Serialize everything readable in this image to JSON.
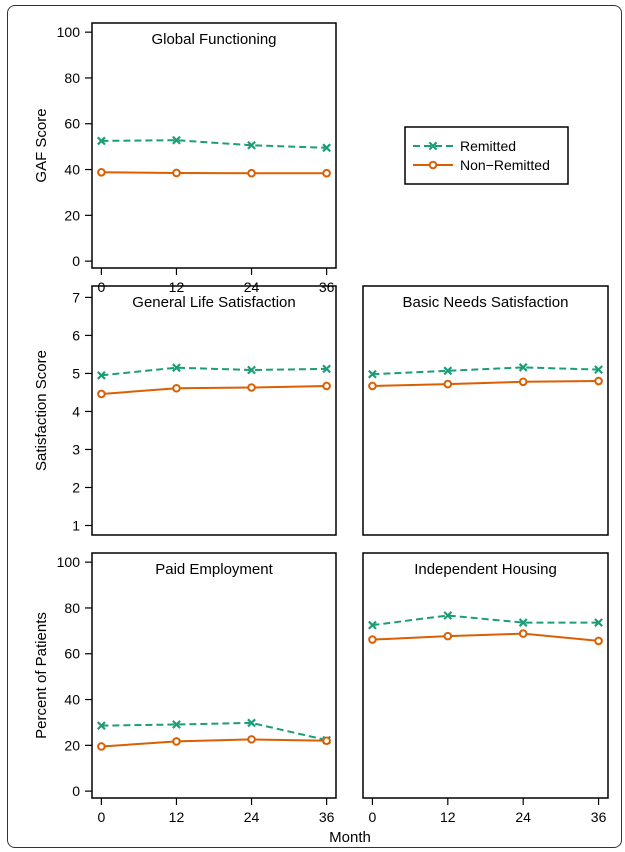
{
  "legend": {
    "position": "top-right",
    "entries": [
      {
        "name": "Remitted",
        "color": "#1b9e77",
        "marker": "x",
        "linestyle": "dashed"
      },
      {
        "name": "Non−Remitted",
        "color": "#d95f02",
        "marker": "o",
        "linestyle": "solid"
      }
    ]
  },
  "xlabel": "Month",
  "chart_data": [
    {
      "type": "line",
      "title": "Global Functioning",
      "ylabel": "GAF Score",
      "x": [
        0,
        12,
        24,
        36
      ],
      "xlim": [
        -1.5,
        37.5
      ],
      "ylim": [
        -3,
        104
      ],
      "yticks": [
        "0",
        "20",
        "40",
        "60",
        "80",
        "100"
      ],
      "xticks": [
        "0",
        "12",
        "24",
        "36"
      ],
      "series": [
        {
          "name": "Remitted",
          "values": [
            52.5,
            52.8,
            50.6,
            49.5
          ]
        },
        {
          "name": "Non−Remitted",
          "values": [
            38.8,
            38.5,
            38.4,
            38.4
          ]
        }
      ]
    },
    {
      "type": "line",
      "title": "General Life Satisfaction",
      "ylabel": "Satisfaction Score",
      "x": [
        0,
        12,
        24,
        36
      ],
      "xlim": [
        -1.5,
        37.5
      ],
      "ylim": [
        0.75,
        7.3
      ],
      "yticks": [
        "1",
        "2",
        "3",
        "4",
        "5",
        "6",
        "7"
      ],
      "xticks": [],
      "series": [
        {
          "name": "Remitted",
          "values": [
            4.95,
            5.15,
            5.09,
            5.12
          ]
        },
        {
          "name": "Non−Remitted",
          "values": [
            4.46,
            4.61,
            4.63,
            4.67
          ]
        }
      ]
    },
    {
      "type": "line",
      "title": "Basic Needs Satisfaction",
      "ylabel": "",
      "x": [
        0,
        12,
        24,
        36
      ],
      "xlim": [
        -1.5,
        37.5
      ],
      "ylim": [
        0.75,
        7.3
      ],
      "yticks": [],
      "xticks": [],
      "series": [
        {
          "name": "Remitted",
          "values": [
            4.98,
            5.07,
            5.16,
            5.1
          ]
        },
        {
          "name": "Non−Remitted",
          "values": [
            4.67,
            4.72,
            4.78,
            4.8
          ]
        }
      ]
    },
    {
      "type": "line",
      "title": "Paid Employment",
      "ylabel": "Percent of Patients",
      "x": [
        0,
        12,
        24,
        36
      ],
      "xlim": [
        -1.5,
        37.5
      ],
      "ylim": [
        -3,
        104
      ],
      "yticks": [
        "0",
        "20",
        "40",
        "60",
        "80",
        "100"
      ],
      "xticks": [
        "0",
        "12",
        "24",
        "36"
      ],
      "series": [
        {
          "name": "Remitted",
          "values": [
            28.6,
            29.1,
            29.8,
            22.3
          ]
        },
        {
          "name": "Non−Remitted",
          "values": [
            19.5,
            21.7,
            22.6,
            22.0
          ]
        }
      ]
    },
    {
      "type": "line",
      "title": "Independent Housing",
      "ylabel": "",
      "x": [
        0,
        12,
        24,
        36
      ],
      "xlim": [
        -1.5,
        37.5
      ],
      "ylim": [
        -3,
        104
      ],
      "yticks": [],
      "xticks": [
        "0",
        "12",
        "24",
        "36"
      ],
      "series": [
        {
          "name": "Remitted",
          "values": [
            72.5,
            76.7,
            73.6,
            73.6
          ]
        },
        {
          "name": "Non−Remitted",
          "values": [
            66.2,
            67.7,
            68.8,
            65.6
          ]
        }
      ]
    }
  ]
}
